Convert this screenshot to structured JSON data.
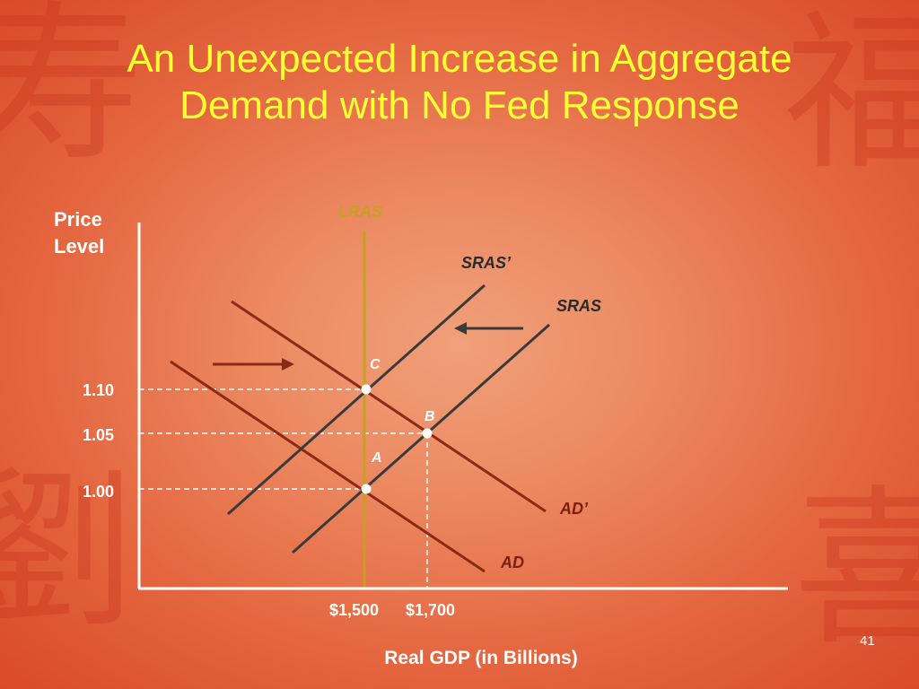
{
  "title": {
    "line1": "An Unexpected Increase in Aggregate",
    "line2": "Demand with No Fed Response"
  },
  "y_axis_label": {
    "line1": "Price",
    "line2": "Level"
  },
  "x_axis_label": "Real GDP (in Billions)",
  "curves": {
    "lras": "LRAS",
    "sras_prime": "SRAS’",
    "sras": "SRAS",
    "ad_prime": "AD’",
    "ad": "AD"
  },
  "points": {
    "a": "A",
    "b": "B",
    "c": "C"
  },
  "price_ticks": [
    "1.10",
    "1.05",
    "1.00"
  ],
  "gdp_ticks": [
    "$1,500",
    "$1,700"
  ],
  "slide_number": "41",
  "colors": {
    "title": "#ffff33",
    "lras": "#c8a020",
    "ad": "#8b2a14",
    "sras": "#3a3a3a",
    "axis": "#ffffff",
    "background": "#e87a52"
  }
}
